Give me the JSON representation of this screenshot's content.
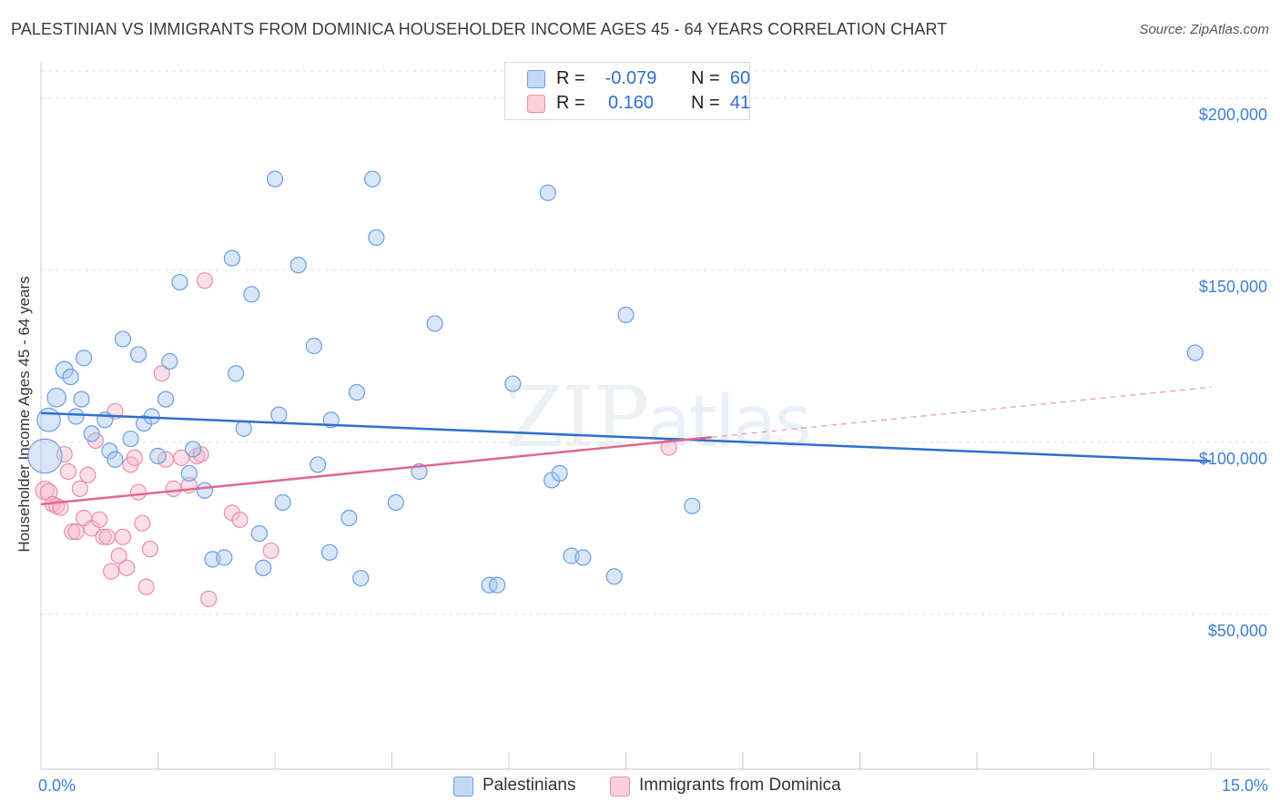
{
  "header": {
    "title": "PALESTINIAN VS IMMIGRANTS FROM DOMINICA HOUSEHOLDER INCOME AGES 45 - 64 YEARS CORRELATION CHART",
    "source": "Source: ZipAtlas.com"
  },
  "watermark": {
    "zip": "ZIP",
    "atlas": "atlas"
  },
  "legend": {
    "rows": [
      {
        "r_label": "R =",
        "r_value": "-0.079",
        "n_label": "N =",
        "n_value": "60"
      },
      {
        "r_label": "R =",
        "r_value": "0.160",
        "n_label": "N =",
        "n_value": "41"
      }
    ]
  },
  "bottom_legend": {
    "series1": "Palestinians",
    "series2": "Immigrants from Dominica"
  },
  "colors": {
    "blue_fill": "#a9c8f0",
    "blue_stroke": "#6a9fe0",
    "blue_line": "#2f6fd0",
    "pink_fill": "#f6b8cb",
    "pink_stroke": "#e88fac",
    "pink_line": "#e0688f",
    "grid": "#dfe3ea",
    "axis_text": "#3f7fd6"
  },
  "chart_data": {
    "type": "scatter",
    "title": "PALESTINIAN VS IMMIGRANTS FROM DOMINICA HOUSEHOLDER INCOME AGES 45 - 64 YEARS CORRELATION CHART",
    "xlabel": "",
    "ylabel": "Householder Income Ages 45 - 64 years",
    "xlim": [
      0,
      15
    ],
    "ylim": [
      5000,
      210000
    ],
    "x_tick_labels": [
      "0.0%",
      "15.0%"
    ],
    "y_ticks": [
      50000,
      100000,
      150000,
      200000
    ],
    "y_tick_labels": [
      "$50,000",
      "$100,000",
      "$150,000",
      "$200,000"
    ],
    "series": [
      {
        "name": "Palestinians",
        "r": -0.079,
        "n": 60,
        "trend": {
          "x": [
            0.0,
            15.0
          ],
          "y": [
            108500,
            94500
          ],
          "x_solid_end": 15.0
        },
        "points": [
          [
            0.05,
            96000,
            2.2
          ],
          [
            0.1,
            106500,
            1.5
          ],
          [
            0.2,
            113000,
            1.2
          ],
          [
            0.3,
            121000,
            1.1
          ],
          [
            0.38,
            119000,
            1
          ],
          [
            0.45,
            107500,
            1
          ],
          [
            0.52,
            112500,
            1
          ],
          [
            0.55,
            124500,
            1
          ],
          [
            0.65,
            102500,
            1
          ],
          [
            0.82,
            106500,
            1
          ],
          [
            0.88,
            97500,
            1
          ],
          [
            0.95,
            95000,
            1
          ],
          [
            1.05,
            130000,
            1
          ],
          [
            1.15,
            101000,
            1
          ],
          [
            1.25,
            125500,
            1
          ],
          [
            1.32,
            105500,
            1
          ],
          [
            1.42,
            107500,
            1
          ],
          [
            1.5,
            96000,
            1
          ],
          [
            1.6,
            112500,
            1
          ],
          [
            1.65,
            123500,
            1
          ],
          [
            1.78,
            146500,
            1
          ],
          [
            1.9,
            91000,
            1
          ],
          [
            1.95,
            98000,
            1
          ],
          [
            2.1,
            86000,
            1
          ],
          [
            2.2,
            66000,
            1
          ],
          [
            2.35,
            66500,
            1
          ],
          [
            2.45,
            153500,
            1
          ],
          [
            2.5,
            120000,
            1
          ],
          [
            2.6,
            104000,
            1
          ],
          [
            2.7,
            143000,
            1
          ],
          [
            2.8,
            73500,
            1
          ],
          [
            2.85,
            63500,
            1
          ],
          [
            3.0,
            176500,
            1
          ],
          [
            3.05,
            108000,
            1
          ],
          [
            3.1,
            82500,
            1
          ],
          [
            3.3,
            151500,
            1
          ],
          [
            3.5,
            128000,
            1
          ],
          [
            3.55,
            93500,
            1
          ],
          [
            3.7,
            68000,
            1
          ],
          [
            3.72,
            106500,
            1
          ],
          [
            3.95,
            78000,
            1
          ],
          [
            4.05,
            114500,
            1
          ],
          [
            4.1,
            60500,
            1
          ],
          [
            4.25,
            176500,
            1
          ],
          [
            4.3,
            159500,
            1
          ],
          [
            4.55,
            82500,
            1
          ],
          [
            4.85,
            91500,
            1
          ],
          [
            5.05,
            134500,
            1
          ],
          [
            5.75,
            58500,
            1
          ],
          [
            5.85,
            58500,
            1
          ],
          [
            6.05,
            117000,
            1
          ],
          [
            6.5,
            172500,
            1
          ],
          [
            6.55,
            89000,
            1
          ],
          [
            6.65,
            91000,
            1
          ],
          [
            6.8,
            67000,
            1
          ],
          [
            6.95,
            66500,
            1
          ],
          [
            7.35,
            61000,
            1
          ],
          [
            7.5,
            137000,
            1
          ],
          [
            8.35,
            81500,
            1
          ],
          [
            14.8,
            126000,
            1
          ]
        ]
      },
      {
        "name": "Immigrants from Dominica",
        "r": 0.16,
        "n": 41,
        "trend": {
          "x": [
            0.0,
            15.0
          ],
          "y": [
            82000,
            116000
          ],
          "x_solid_end": 8.6
        },
        "points": [
          [
            0.05,
            86000,
            1.2
          ],
          [
            0.1,
            85500,
            1.1
          ],
          [
            0.15,
            82000,
            1
          ],
          [
            0.2,
            81500,
            1
          ],
          [
            0.25,
            81000,
            1
          ],
          [
            0.3,
            96500,
            1
          ],
          [
            0.35,
            91500,
            1
          ],
          [
            0.4,
            74000,
            1
          ],
          [
            0.45,
            74000,
            1
          ],
          [
            0.5,
            86500,
            1
          ],
          [
            0.55,
            78000,
            1
          ],
          [
            0.6,
            90500,
            1
          ],
          [
            0.65,
            75000,
            1
          ],
          [
            0.7,
            100500,
            1
          ],
          [
            0.75,
            77500,
            1
          ],
          [
            0.8,
            72500,
            1
          ],
          [
            0.85,
            72500,
            1
          ],
          [
            0.9,
            62500,
            1
          ],
          [
            0.95,
            109000,
            1
          ],
          [
            1.0,
            67000,
            1
          ],
          [
            1.05,
            72500,
            1
          ],
          [
            1.1,
            63500,
            1
          ],
          [
            1.15,
            93500,
            1
          ],
          [
            1.2,
            95500,
            1
          ],
          [
            1.25,
            85500,
            1
          ],
          [
            1.3,
            76500,
            1
          ],
          [
            1.35,
            58000,
            1
          ],
          [
            1.4,
            69000,
            1
          ],
          [
            1.55,
            120000,
            1
          ],
          [
            1.6,
            95000,
            1
          ],
          [
            1.7,
            86500,
            1
          ],
          [
            1.8,
            95500,
            1
          ],
          [
            1.9,
            87500,
            1
          ],
          [
            2.0,
            96000,
            1
          ],
          [
            2.05,
            96500,
            1
          ],
          [
            2.1,
            147000,
            1
          ],
          [
            2.15,
            54500,
            1
          ],
          [
            2.45,
            79500,
            1
          ],
          [
            2.55,
            77500,
            1
          ],
          [
            2.95,
            68500,
            1
          ],
          [
            8.05,
            98500,
            1
          ]
        ]
      }
    ]
  }
}
